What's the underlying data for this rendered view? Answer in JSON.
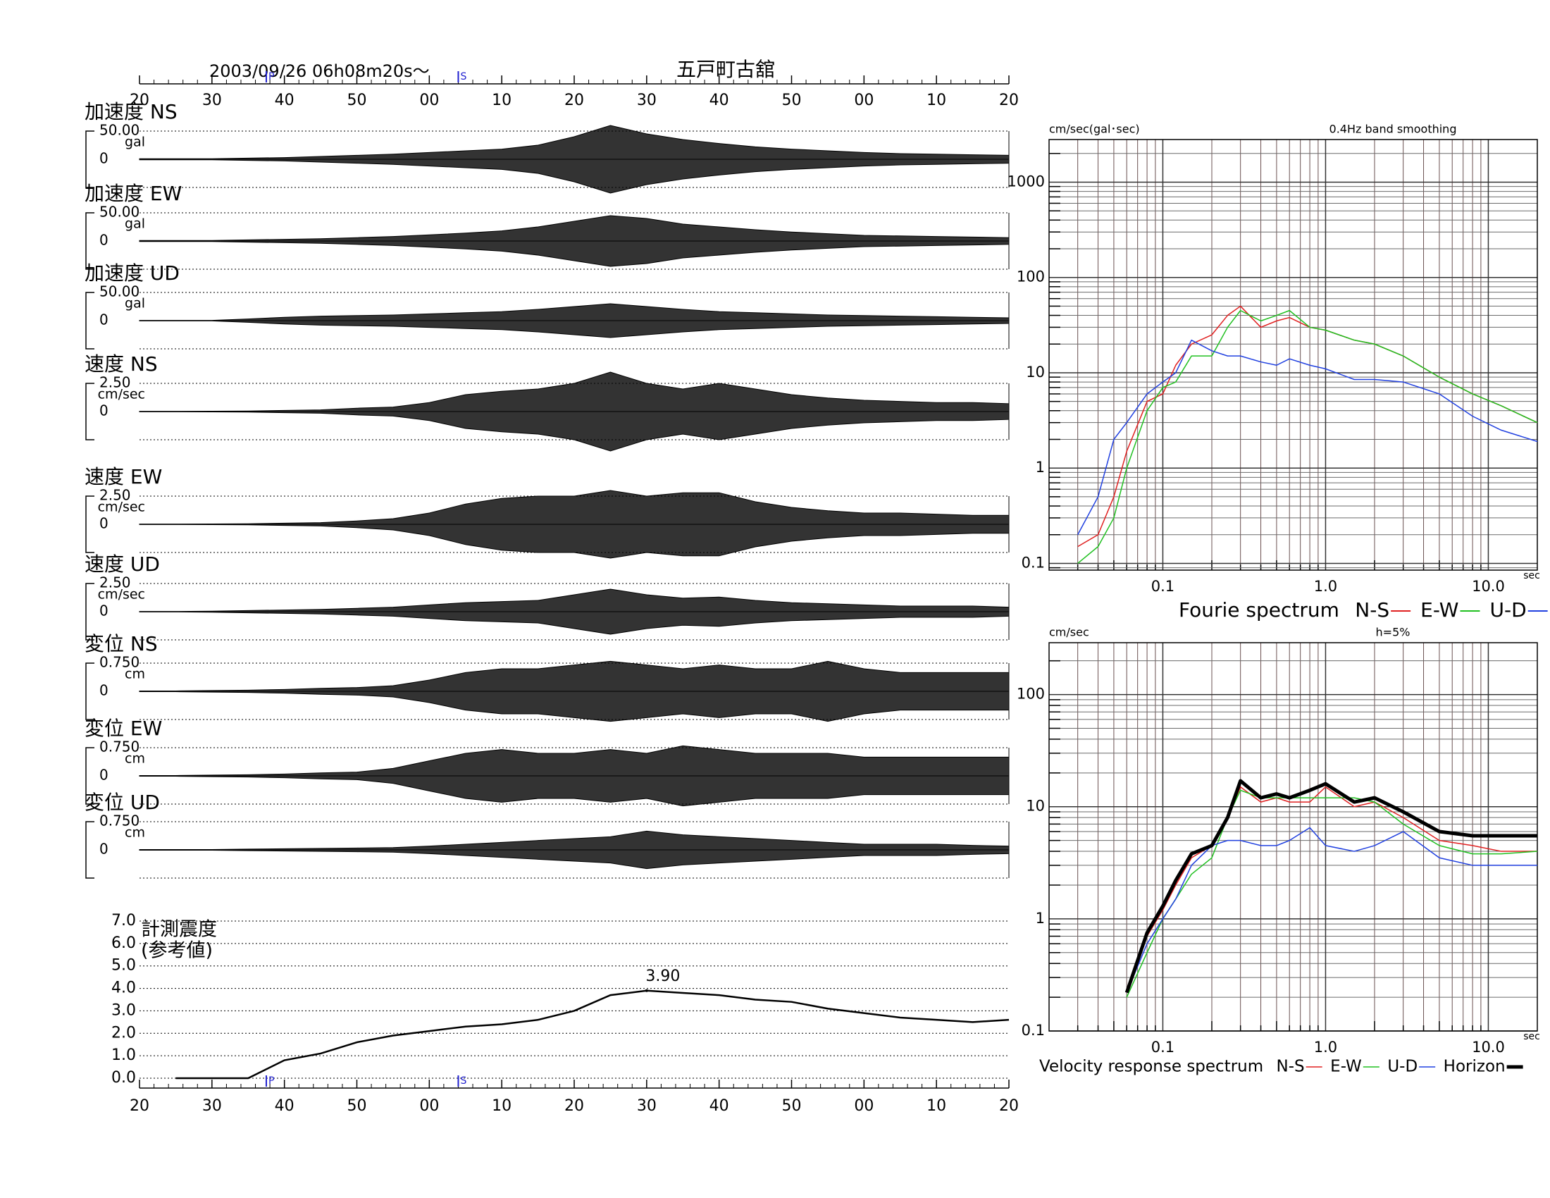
{
  "chart_data": [
    {
      "type": "time-axis",
      "title": "2003/09/26  06h08m20s～",
      "subtitle": "五戸町古舘",
      "xlim": [
        0,
        120
      ],
      "xticks": [
        {
          "value": 0,
          "label": "20"
        },
        {
          "value": 10,
          "label": "30"
        },
        {
          "value": 20,
          "label": "40"
        },
        {
          "value": 30,
          "label": "50"
        },
        {
          "value": 40,
          "label": "00"
        },
        {
          "value": 50,
          "label": "10"
        },
        {
          "value": 60,
          "label": "20"
        },
        {
          "value": 70,
          "label": "30"
        },
        {
          "value": 80,
          "label": "40"
        },
        {
          "value": 90,
          "label": "50"
        },
        {
          "value": 100,
          "label": "00"
        },
        {
          "value": 110,
          "label": "10"
        },
        {
          "value": 120,
          "label": "20"
        }
      ],
      "phase_marks": [
        {
          "label": "P",
          "x": 17.5
        },
        {
          "label": "S",
          "x": 44
        }
      ]
    },
    {
      "type": "waveform",
      "title": "加速度 NS",
      "unit": "gal",
      "ylim": [
        -50,
        50
      ],
      "yticks": [
        {
          "value": 50,
          "label": "50.00"
        },
        0
      ],
      "color": "#000000",
      "x": [
        0,
        5,
        10,
        15,
        20,
        25,
        30,
        35,
        40,
        45,
        50,
        55,
        60,
        65,
        70,
        75,
        80,
        85,
        90,
        95,
        100,
        105,
        110,
        115,
        120
      ],
      "values": [
        1,
        1,
        1,
        2,
        3,
        5,
        7,
        9,
        12,
        15,
        18,
        25,
        40,
        60,
        45,
        35,
        28,
        22,
        18,
        15,
        12,
        10,
        9,
        8,
        7
      ]
    },
    {
      "type": "waveform",
      "title": "加速度 EW",
      "unit": "gal",
      "ylim": [
        -50,
        50
      ],
      "yticks": [
        {
          "value": 50,
          "label": "50.00"
        },
        0
      ],
      "color": "#000000",
      "x": [
        0,
        5,
        10,
        15,
        20,
        25,
        30,
        35,
        40,
        45,
        50,
        55,
        60,
        65,
        70,
        75,
        80,
        85,
        90,
        95,
        100,
        105,
        110,
        115,
        120
      ],
      "values": [
        1,
        1,
        1,
        2,
        3,
        4,
        6,
        8,
        11,
        14,
        18,
        25,
        35,
        45,
        40,
        30,
        25,
        20,
        16,
        13,
        10,
        9,
        8,
        7,
        6
      ]
    },
    {
      "type": "waveform",
      "title": "加速度 UD",
      "unit": "gal",
      "ylim": [
        -50,
        50
      ],
      "yticks": [
        {
          "value": 50,
          "label": "50.00"
        },
        0
      ],
      "color": "#000000",
      "x": [
        0,
        5,
        10,
        15,
        20,
        25,
        30,
        35,
        40,
        45,
        50,
        55,
        60,
        65,
        70,
        75,
        80,
        85,
        90,
        95,
        100,
        105,
        110,
        115,
        120
      ],
      "values": [
        0.5,
        0.5,
        0.5,
        3,
        6,
        8,
        9,
        10,
        12,
        14,
        16,
        20,
        25,
        30,
        25,
        20,
        16,
        14,
        12,
        10,
        9,
        8,
        7,
        6,
        5
      ]
    },
    {
      "type": "waveform",
      "title": "速度 NS",
      "unit": "cm/sec",
      "ylim": [
        -2.5,
        2.5
      ],
      "yticks": [
        {
          "value": 2.5,
          "label": "2.50"
        },
        0
      ],
      "color": "#000000",
      "x": [
        0,
        5,
        10,
        15,
        20,
        25,
        30,
        35,
        40,
        45,
        50,
        55,
        60,
        65,
        70,
        75,
        80,
        85,
        90,
        95,
        100,
        105,
        110,
        115,
        120
      ],
      "values": [
        0.02,
        0.02,
        0.03,
        0.05,
        0.1,
        0.15,
        0.3,
        0.4,
        0.8,
        1.5,
        1.8,
        2.0,
        2.5,
        3.5,
        2.5,
        2.0,
        2.5,
        2.0,
        1.5,
        1.2,
        1.0,
        0.9,
        0.8,
        0.8,
        0.7
      ]
    },
    {
      "type": "waveform",
      "title": "速度 EW",
      "unit": "cm/sec",
      "ylim": [
        -2.5,
        2.5
      ],
      "yticks": [
        {
          "value": 2.5,
          "label": "2.50"
        },
        0
      ],
      "color": "#000000",
      "x": [
        0,
        5,
        10,
        15,
        20,
        25,
        30,
        35,
        40,
        45,
        50,
        55,
        60,
        65,
        70,
        75,
        80,
        85,
        90,
        95,
        100,
        105,
        110,
        115,
        120
      ],
      "values": [
        0.02,
        0.02,
        0.03,
        0.05,
        0.1,
        0.15,
        0.3,
        0.5,
        1.0,
        1.8,
        2.3,
        2.5,
        2.5,
        3.0,
        2.5,
        2.8,
        2.8,
        2.0,
        1.5,
        1.2,
        1.0,
        1.0,
        0.9,
        0.8,
        0.8
      ]
    },
    {
      "type": "waveform",
      "title": "速度 UD",
      "unit": "cm/sec",
      "ylim": [
        -2.5,
        2.5
      ],
      "yticks": [
        {
          "value": 2.5,
          "label": "2.50"
        },
        0
      ],
      "color": "#000000",
      "x": [
        0,
        5,
        10,
        15,
        20,
        25,
        30,
        35,
        40,
        45,
        50,
        55,
        60,
        65,
        70,
        75,
        80,
        85,
        90,
        95,
        100,
        105,
        110,
        115,
        120
      ],
      "values": [
        0.02,
        0.02,
        0.05,
        0.1,
        0.15,
        0.2,
        0.3,
        0.4,
        0.6,
        0.8,
        0.9,
        1.0,
        1.5,
        2.0,
        1.5,
        1.2,
        1.3,
        1.0,
        0.8,
        0.7,
        0.6,
        0.5,
        0.5,
        0.5,
        0.4
      ]
    },
    {
      "type": "waveform",
      "title": "変位 NS",
      "unit": "cm",
      "ylim": [
        -0.75,
        0.75
      ],
      "yticks": [
        {
          "value": 0.75,
          "label": "0.750"
        },
        0
      ],
      "color": "#000000",
      "x": [
        0,
        5,
        10,
        15,
        20,
        25,
        30,
        35,
        40,
        45,
        50,
        55,
        60,
        65,
        70,
        75,
        80,
        85,
        90,
        95,
        100,
        105,
        110,
        115,
        120
      ],
      "values": [
        0.01,
        0.01,
        0.02,
        0.03,
        0.05,
        0.08,
        0.1,
        0.15,
        0.3,
        0.5,
        0.6,
        0.6,
        0.7,
        0.8,
        0.7,
        0.6,
        0.7,
        0.6,
        0.6,
        0.8,
        0.6,
        0.5,
        0.5,
        0.5,
        0.5
      ]
    },
    {
      "type": "waveform",
      "title": "変位 EW",
      "unit": "cm",
      "ylim": [
        -0.75,
        0.75
      ],
      "yticks": [
        {
          "value": 0.75,
          "label": "0.750"
        },
        0
      ],
      "color": "#000000",
      "x": [
        0,
        5,
        10,
        15,
        20,
        25,
        30,
        35,
        40,
        45,
        50,
        55,
        60,
        65,
        70,
        75,
        80,
        85,
        90,
        95,
        100,
        105,
        110,
        115,
        120
      ],
      "values": [
        0.01,
        0.01,
        0.02,
        0.03,
        0.05,
        0.08,
        0.1,
        0.2,
        0.4,
        0.6,
        0.7,
        0.6,
        0.6,
        0.7,
        0.6,
        0.8,
        0.7,
        0.6,
        0.6,
        0.6,
        0.5,
        0.5,
        0.5,
        0.5,
        0.5
      ]
    },
    {
      "type": "waveform",
      "title": "変位 UD",
      "unit": "cm",
      "ylim": [
        -0.75,
        0.75
      ],
      "yticks": [
        {
          "value": 0.75,
          "label": "0.750"
        },
        0
      ],
      "color": "#000000",
      "x": [
        0,
        5,
        10,
        15,
        20,
        25,
        30,
        35,
        40,
        45,
        50,
        55,
        60,
        65,
        70,
        75,
        80,
        85,
        90,
        95,
        100,
        105,
        110,
        115,
        120
      ],
      "values": [
        0.01,
        0.01,
        0.01,
        0.02,
        0.03,
        0.04,
        0.05,
        0.06,
        0.1,
        0.15,
        0.2,
        0.25,
        0.3,
        0.35,
        0.5,
        0.4,
        0.35,
        0.3,
        0.25,
        0.2,
        0.15,
        0.15,
        0.15,
        0.12,
        0.1
      ]
    },
    {
      "type": "intensity",
      "title": "計測震度",
      "subtitle": "(参考値)",
      "color": "#000000",
      "xlim": [
        0,
        120
      ],
      "xticks": [
        {
          "value": 0,
          "label": "20"
        },
        {
          "value": 10,
          "label": "30"
        },
        {
          "value": 20,
          "label": "40"
        },
        {
          "value": 30,
          "label": "50"
        },
        {
          "value": 40,
          "label": "00"
        },
        {
          "value": 50,
          "label": "10"
        },
        {
          "value": 60,
          "label": "20"
        },
        {
          "value": 70,
          "label": "30"
        },
        {
          "value": 80,
          "label": "40"
        },
        {
          "value": 90,
          "label": "50"
        },
        {
          "value": 100,
          "label": "00"
        },
        {
          "value": 110,
          "label": "10"
        },
        {
          "value": 120,
          "label": "20"
        }
      ],
      "ylim": [
        0,
        7
      ],
      "yticks": [
        {
          "value": 0,
          "label": "0.0"
        },
        {
          "value": 1,
          "label": "1.0"
        },
        {
          "value": 2,
          "label": "2.0"
        },
        {
          "value": 3,
          "label": "3.0"
        },
        {
          "value": 4,
          "label": "4.0"
        },
        {
          "value": 5,
          "label": "5.0"
        },
        {
          "value": 6,
          "label": "6.0"
        },
        {
          "value": 7,
          "label": "7.0"
        }
      ],
      "x": [
        0,
        5,
        10,
        15,
        20,
        25,
        30,
        35,
        40,
        45,
        50,
        55,
        60,
        65,
        70,
        75,
        80,
        85,
        90,
        95,
        100,
        105,
        110,
        115,
        120
      ],
      "values": [
        null,
        0,
        0,
        0,
        0.8,
        1.1,
        1.6,
        1.9,
        2.1,
        2.3,
        2.4,
        2.6,
        3.0,
        3.7,
        3.9,
        3.8,
        3.7,
        3.5,
        3.4,
        3.1,
        2.9,
        2.7,
        2.6,
        2.5,
        2.6
      ],
      "annotation": {
        "label": "3.90",
        "value": 3.9,
        "x": 70
      },
      "phase_marks": [
        {
          "label": "P",
          "x": 17.5
        },
        {
          "label": "S",
          "x": 44
        }
      ]
    },
    {
      "type": "spectrum",
      "title": "Fourie spectrum",
      "subtitle": "0.4Hz band smoothing",
      "ylabel": "cm/sec(gal･sec)",
      "xlabel": "sec",
      "xscale": "log",
      "yscale": "log",
      "xlim": [
        0.02,
        20
      ],
      "ylim": [
        0.085,
        2800
      ],
      "xticks": [
        0.1,
        {
          "value": 1,
          "label": "1.0"
        },
        {
          "value": 10,
          "label": "10.0"
        }
      ],
      "yticks": [
        0.1,
        1,
        10,
        100,
        1000
      ],
      "x": [
        0.03,
        0.04,
        0.05,
        0.06,
        0.08,
        0.1,
        0.12,
        0.15,
        0.2,
        0.25,
        0.3,
        0.4,
        0.5,
        0.6,
        0.8,
        1,
        1.5,
        2,
        3,
        5,
        8,
        12,
        20
      ],
      "series": [
        {
          "name": "N-S",
          "color": "#e02020",
          "values": [
            0.15,
            0.2,
            0.5,
            1.5,
            5,
            6,
            12,
            20,
            25,
            40,
            50,
            30,
            35,
            38,
            30,
            28,
            22,
            20,
            15,
            9,
            6,
            4.5,
            3
          ]
        },
        {
          "name": "E-W",
          "color": "#20c020",
          "values": [
            0.1,
            0.15,
            0.3,
            1,
            4,
            7,
            8,
            15,
            15,
            30,
            45,
            35,
            40,
            45,
            30,
            28,
            22,
            20,
            15,
            9,
            6,
            4.5,
            3
          ]
        },
        {
          "name": "U-D",
          "color": "#2040e0",
          "values": [
            0.2,
            0.5,
            2,
            3,
            6,
            8,
            10,
            22,
            17,
            15,
            15,
            13,
            12,
            14,
            12,
            11,
            8.5,
            8.5,
            8,
            6,
            3.5,
            2.5,
            1.9
          ]
        }
      ]
    },
    {
      "type": "spectrum",
      "title": "Velocity response spectrum",
      "subtitle": "h=5%",
      "ylabel": "cm/sec",
      "xlabel": "sec",
      "xscale": "log",
      "yscale": "log",
      "xlim": [
        0.02,
        20
      ],
      "ylim": [
        0.1,
        290
      ],
      "xticks": [
        0.1,
        {
          "value": 1,
          "label": "1.0"
        },
        {
          "value": 10,
          "label": "10.0"
        }
      ],
      "yticks": [
        0.1,
        1,
        10,
        100
      ],
      "x": [
        0.06,
        0.08,
        0.1,
        0.12,
        0.15,
        0.2,
        0.25,
        0.3,
        0.4,
        0.5,
        0.6,
        0.8,
        1,
        1.5,
        2,
        3,
        5,
        8,
        12,
        20
      ],
      "series": [
        {
          "name": "N-S",
          "color": "#e02020",
          "linewidth": 1.5,
          "values": [
            0.22,
            0.7,
            1.2,
            2,
            3.5,
            4.5,
            8,
            15,
            11,
            12,
            11,
            11,
            15,
            10,
            11,
            8,
            5,
            4.5,
            4,
            4
          ]
        },
        {
          "name": "E-W",
          "color": "#20c020",
          "linewidth": 1.5,
          "values": [
            0.2,
            0.5,
            1,
            1.5,
            2.5,
            3.5,
            8,
            14,
            12,
            12,
            12,
            12,
            12,
            12,
            11,
            7,
            4.5,
            3.8,
            3.8,
            4
          ]
        },
        {
          "name": "U-D",
          "color": "#2040e0",
          "linewidth": 1.5,
          "values": [
            0.22,
            0.6,
            1,
            1.5,
            3,
            4.5,
            5,
            5,
            4.5,
            4.5,
            5,
            6.5,
            4.5,
            4,
            4.5,
            6,
            3.5,
            3,
            3,
            3
          ]
        },
        {
          "name": "Horizon",
          "color": "#000000",
          "linewidth": 5,
          "values": [
            0.22,
            0.75,
            1.3,
            2.2,
            3.8,
            4.5,
            8,
            17,
            12,
            13,
            12,
            14,
            16,
            11,
            12,
            9,
            6,
            5.5,
            5.5,
            5.5
          ]
        }
      ]
    }
  ]
}
